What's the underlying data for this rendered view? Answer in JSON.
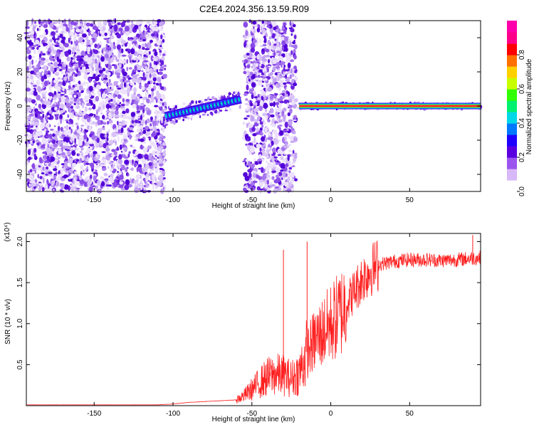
{
  "figure_title": "C2E4.2024.356.13.59.R09",
  "chart_data": [
    {
      "type": "heatmap",
      "title": "C2E4.2024.356.13.59.R09",
      "xlabel": "Height of straight line (km)",
      "ylabel": "Frequency (Hz)",
      "xlim": [
        -193,
        95
      ],
      "ylim": [
        -50,
        50
      ],
      "xticks": [
        -150,
        -100,
        -50,
        0,
        50
      ],
      "yticks": [
        -40,
        -20,
        0,
        20,
        40
      ],
      "colorbar": {
        "label": "Normalized spectral amplitude",
        "range": [
          0,
          1
        ],
        "ticks": [
          "0.0",
          "0.2",
          "0.4",
          "0.6",
          "0.8"
        ],
        "colors": [
          "#ffffff",
          "#d8b8f8",
          "#9a55ee",
          "#5a00e0",
          "#1e00ff",
          "#0078ff",
          "#00d8e8",
          "#00f070",
          "#30ff00",
          "#c8ff00",
          "#ffd000",
          "#ff7000",
          "#ff0000",
          "#ff0088",
          "#ff00aa"
        ]
      },
      "regions": [
        {
          "x": [
            -193,
            -105
          ],
          "content": "noise"
        },
        {
          "x": [
            -105,
            -57
          ],
          "content": "tone",
          "freq_start": -6,
          "freq_end": 4
        },
        {
          "x": [
            -55,
            -22
          ],
          "content": "noise"
        },
        {
          "x": [
            -20,
            95
          ],
          "content": "tone",
          "freq": 0
        }
      ],
      "grid": false
    },
    {
      "type": "line",
      "xlabel": "Height of straight line (km)",
      "ylabel": "SNR (10 * v/v)",
      "y_multiplier": "(x10⁴)",
      "xlim": [
        -193,
        95
      ],
      "ylim": [
        0,
        2.1
      ],
      "xticks": [
        -150,
        -100,
        -50,
        0,
        50
      ],
      "yticks": [
        "0.5",
        "1.0",
        "1.5",
        "2.0"
      ],
      "ytick_values": [
        0.5,
        1.0,
        1.5,
        2.0
      ],
      "color": "#ff2020",
      "series": [
        {
          "x": [
            -193,
            -150,
            -110,
            -100,
            -90,
            -80,
            -70,
            -60,
            -55,
            -50,
            -45,
            -40,
            -35,
            -30,
            -25,
            -20,
            -15,
            -10,
            -5,
            0,
            5,
            10,
            15,
            20,
            25,
            30,
            40,
            50,
            60,
            70,
            80,
            90,
            95
          ],
          "values": [
            0.01,
            0.01,
            0.01,
            0.02,
            0.04,
            0.05,
            0.06,
            0.07,
            0.12,
            0.2,
            0.28,
            0.35,
            0.38,
            0.37,
            0.33,
            0.4,
            0.65,
            0.8,
            0.9,
            1.0,
            1.1,
            1.25,
            1.4,
            1.55,
            1.65,
            1.72,
            1.76,
            1.78,
            1.78,
            1.77,
            1.78,
            1.8,
            1.8
          ]
        }
      ],
      "spikes": [
        {
          "x": -30,
          "y": 1.9
        },
        {
          "x": -15,
          "y": 2.0
        },
        {
          "x": 90,
          "y": 2.08
        }
      ],
      "grid": false
    }
  ]
}
